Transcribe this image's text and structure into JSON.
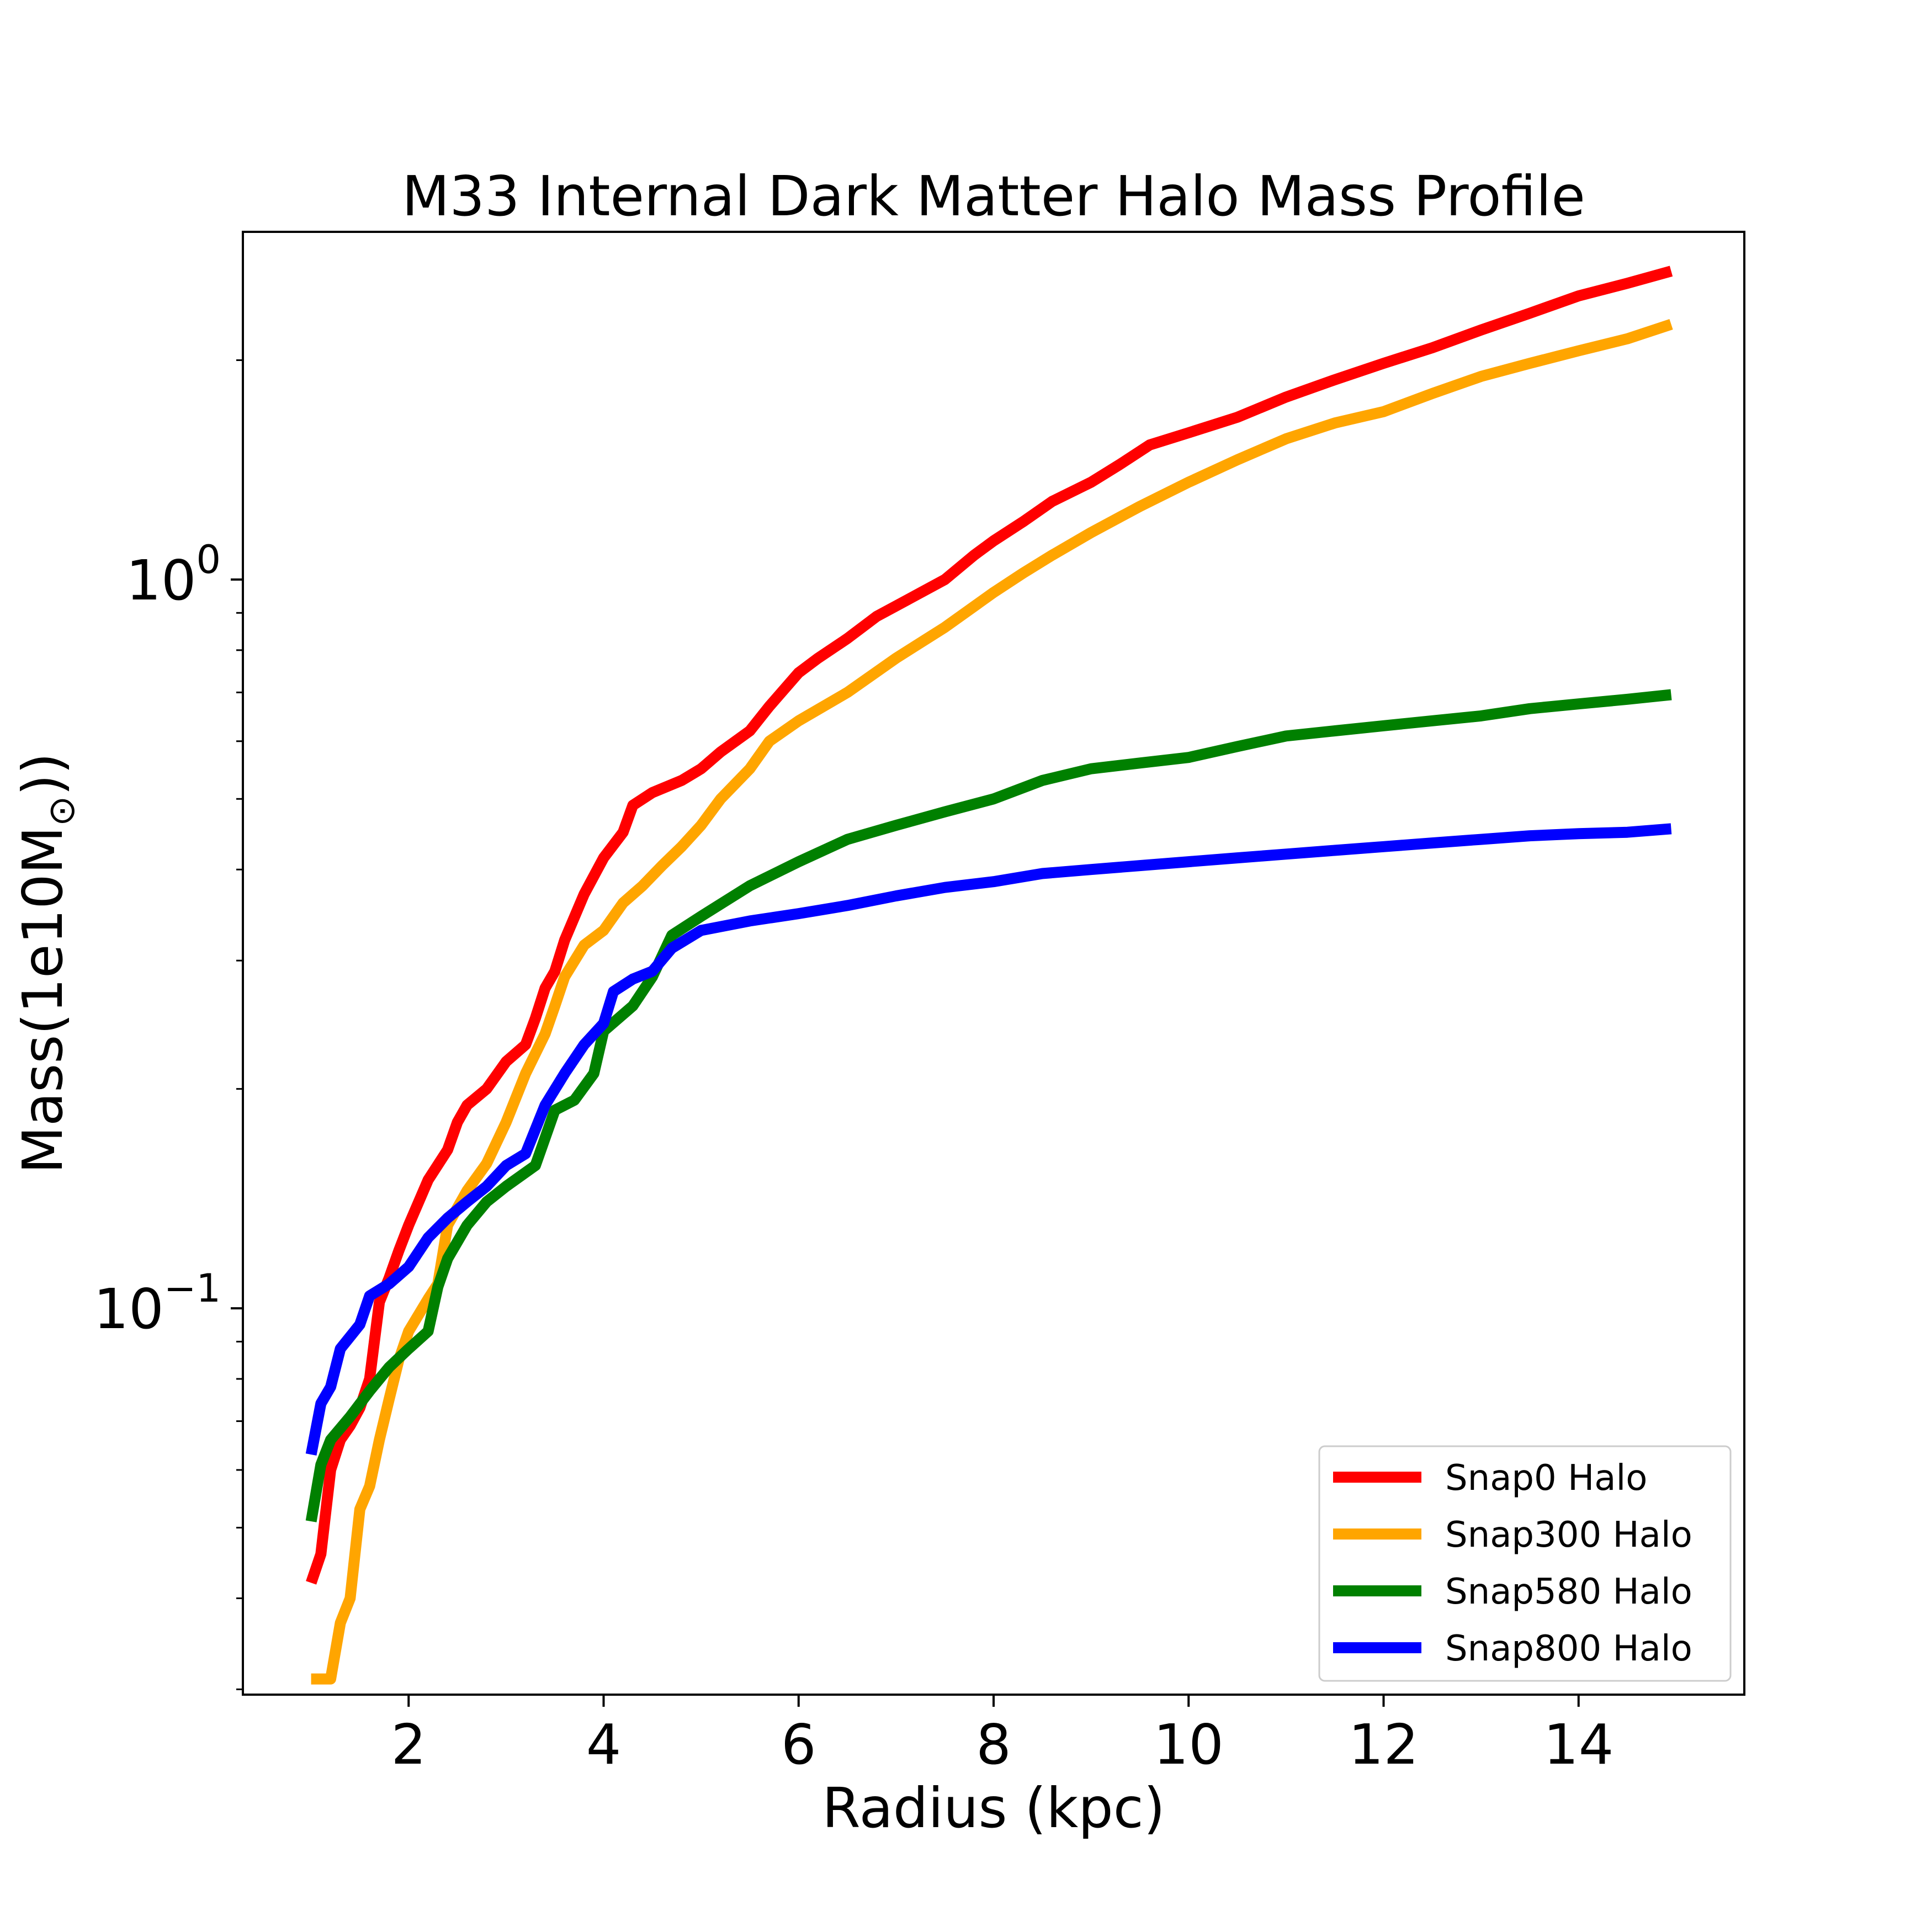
{
  "chart_data": {
    "type": "line",
    "title": "M33 Internal Dark Matter Halo Mass Profile",
    "xlabel": "Radius (kpc)",
    "ylabel_prefix": "Mass(1e10M",
    "ylabel_sub": "⊙",
    "ylabel_suffix": "))",
    "xlim": [
      0.3,
      15.7
    ],
    "ylim": [
      0.0295,
      3.0
    ],
    "yscale": "log",
    "grid": false,
    "legend_position": "lower-right",
    "x_ticks": [
      {
        "value": 2,
        "label": "2"
      },
      {
        "value": 4,
        "label": "4"
      },
      {
        "value": 6,
        "label": "6"
      },
      {
        "value": 8,
        "label": "8"
      },
      {
        "value": 10,
        "label": "10"
      },
      {
        "value": 12,
        "label": "12"
      },
      {
        "value": 14,
        "label": "14"
      }
    ],
    "y_major_ticks": [
      {
        "value": 0.1,
        "base": "10",
        "exp": "−1"
      },
      {
        "value": 1.0,
        "base": "10",
        "exp": "0"
      }
    ],
    "y_minor_ticks": [
      0.03,
      0.04,
      0.05,
      0.06,
      0.07,
      0.08,
      0.09,
      0.2,
      0.3,
      0.4,
      0.5,
      0.6,
      0.7,
      0.8,
      0.9,
      2.0
    ],
    "series": [
      {
        "name": "Snap0 Halo",
        "color": "#ff0000",
        "points": [
          [
            1.0,
            0.042
          ],
          [
            1.1,
            0.046
          ],
          [
            1.2,
            0.06
          ],
          [
            1.3,
            0.066
          ],
          [
            1.4,
            0.069
          ],
          [
            1.5,
            0.073
          ],
          [
            1.6,
            0.08
          ],
          [
            1.7,
            0.102
          ],
          [
            1.8,
            0.11
          ],
          [
            1.9,
            0.12
          ],
          [
            2.0,
            0.13
          ],
          [
            2.2,
            0.15
          ],
          [
            2.4,
            0.165
          ],
          [
            2.5,
            0.18
          ],
          [
            2.6,
            0.19
          ],
          [
            2.8,
            0.2
          ],
          [
            3.0,
            0.218
          ],
          [
            3.2,
            0.23
          ],
          [
            3.3,
            0.25
          ],
          [
            3.4,
            0.275
          ],
          [
            3.5,
            0.29
          ],
          [
            3.6,
            0.32
          ],
          [
            3.8,
            0.37
          ],
          [
            4.0,
            0.415
          ],
          [
            4.2,
            0.45
          ],
          [
            4.3,
            0.49
          ],
          [
            4.5,
            0.51
          ],
          [
            4.8,
            0.53
          ],
          [
            5.0,
            0.55
          ],
          [
            5.2,
            0.58
          ],
          [
            5.5,
            0.62
          ],
          [
            5.7,
            0.67
          ],
          [
            6.0,
            0.745
          ],
          [
            6.2,
            0.78
          ],
          [
            6.5,
            0.83
          ],
          [
            6.8,
            0.89
          ],
          [
            7.0,
            0.92
          ],
          [
            7.5,
            1.0
          ],
          [
            7.8,
            1.08
          ],
          [
            8.0,
            1.13
          ],
          [
            8.3,
            1.2
          ],
          [
            8.6,
            1.28
          ],
          [
            9.0,
            1.36
          ],
          [
            9.3,
            1.44
          ],
          [
            9.6,
            1.53
          ],
          [
            10.0,
            1.59
          ],
          [
            10.5,
            1.67
          ],
          [
            11.0,
            1.78
          ],
          [
            11.5,
            1.88
          ],
          [
            12.0,
            1.98
          ],
          [
            12.5,
            2.08
          ],
          [
            13.0,
            2.2
          ],
          [
            13.5,
            2.32
          ],
          [
            14.0,
            2.45
          ],
          [
            14.5,
            2.55
          ],
          [
            14.95,
            2.65
          ]
        ]
      },
      {
        "name": "Snap300 Halo",
        "color": "#ffa500",
        "points": [
          [
            1.0,
            0.031
          ],
          [
            1.2,
            0.031
          ],
          [
            1.3,
            0.037
          ],
          [
            1.4,
            0.04
          ],
          [
            1.5,
            0.053
          ],
          [
            1.6,
            0.057
          ],
          [
            1.7,
            0.066
          ],
          [
            1.8,
            0.075
          ],
          [
            1.9,
            0.085
          ],
          [
            2.0,
            0.093
          ],
          [
            2.2,
            0.103
          ],
          [
            2.3,
            0.108
          ],
          [
            2.4,
            0.13
          ],
          [
            2.6,
            0.145
          ],
          [
            2.8,
            0.158
          ],
          [
            3.0,
            0.18
          ],
          [
            3.2,
            0.21
          ],
          [
            3.4,
            0.238
          ],
          [
            3.5,
            0.26
          ],
          [
            3.6,
            0.285
          ],
          [
            3.8,
            0.315
          ],
          [
            4.0,
            0.33
          ],
          [
            4.2,
            0.36
          ],
          [
            4.4,
            0.38
          ],
          [
            4.6,
            0.405
          ],
          [
            4.8,
            0.43
          ],
          [
            5.0,
            0.46
          ],
          [
            5.2,
            0.5
          ],
          [
            5.5,
            0.55
          ],
          [
            5.7,
            0.6
          ],
          [
            6.0,
            0.64
          ],
          [
            6.5,
            0.7
          ],
          [
            7.0,
            0.78
          ],
          [
            7.5,
            0.86
          ],
          [
            8.0,
            0.96
          ],
          [
            8.3,
            1.02
          ],
          [
            8.6,
            1.08
          ],
          [
            9.0,
            1.16
          ],
          [
            9.5,
            1.26
          ],
          [
            10.0,
            1.36
          ],
          [
            10.5,
            1.46
          ],
          [
            11.0,
            1.56
          ],
          [
            11.5,
            1.64
          ],
          [
            12.0,
            1.7
          ],
          [
            12.5,
            1.8
          ],
          [
            13.0,
            1.9
          ],
          [
            13.5,
            1.98
          ],
          [
            14.0,
            2.06
          ],
          [
            14.5,
            2.14
          ],
          [
            14.95,
            2.24
          ]
        ]
      },
      {
        "name": "Snap580 Halo",
        "color": "#008000",
        "points": [
          [
            1.0,
            0.051
          ],
          [
            1.1,
            0.061
          ],
          [
            1.2,
            0.066
          ],
          [
            1.4,
            0.071
          ],
          [
            1.6,
            0.077
          ],
          [
            1.8,
            0.083
          ],
          [
            2.0,
            0.088
          ],
          [
            2.2,
            0.093
          ],
          [
            2.3,
            0.107
          ],
          [
            2.4,
            0.117
          ],
          [
            2.6,
            0.13
          ],
          [
            2.8,
            0.14
          ],
          [
            3.0,
            0.147
          ],
          [
            3.3,
            0.157
          ],
          [
            3.5,
            0.187
          ],
          [
            3.7,
            0.193
          ],
          [
            3.9,
            0.21
          ],
          [
            4.0,
            0.24
          ],
          [
            4.3,
            0.26
          ],
          [
            4.5,
            0.285
          ],
          [
            4.7,
            0.325
          ],
          [
            5.0,
            0.345
          ],
          [
            5.5,
            0.38
          ],
          [
            6.0,
            0.41
          ],
          [
            6.5,
            0.44
          ],
          [
            7.0,
            0.46
          ],
          [
            7.5,
            0.48
          ],
          [
            8.0,
            0.5
          ],
          [
            8.5,
            0.53
          ],
          [
            9.0,
            0.55
          ],
          [
            9.5,
            0.56
          ],
          [
            10.0,
            0.57
          ],
          [
            10.5,
            0.59
          ],
          [
            11.0,
            0.61
          ],
          [
            11.5,
            0.62
          ],
          [
            12.0,
            0.63
          ],
          [
            12.5,
            0.64
          ],
          [
            13.0,
            0.65
          ],
          [
            13.5,
            0.665
          ],
          [
            14.0,
            0.675
          ],
          [
            14.5,
            0.685
          ],
          [
            14.95,
            0.695
          ]
        ]
      },
      {
        "name": "Snap800 Halo",
        "color": "#0000ff",
        "points": [
          [
            1.0,
            0.063
          ],
          [
            1.1,
            0.074
          ],
          [
            1.2,
            0.078
          ],
          [
            1.3,
            0.088
          ],
          [
            1.5,
            0.095
          ],
          [
            1.6,
            0.104
          ],
          [
            1.8,
            0.108
          ],
          [
            2.0,
            0.114
          ],
          [
            2.2,
            0.125
          ],
          [
            2.4,
            0.133
          ],
          [
            2.6,
            0.14
          ],
          [
            2.8,
            0.147
          ],
          [
            3.0,
            0.157
          ],
          [
            3.2,
            0.163
          ],
          [
            3.4,
            0.19
          ],
          [
            3.6,
            0.21
          ],
          [
            3.8,
            0.23
          ],
          [
            4.0,
            0.246
          ],
          [
            4.1,
            0.272
          ],
          [
            4.3,
            0.283
          ],
          [
            4.5,
            0.29
          ],
          [
            4.7,
            0.312
          ],
          [
            5.0,
            0.33
          ],
          [
            5.5,
            0.34
          ],
          [
            6.0,
            0.348
          ],
          [
            6.5,
            0.357
          ],
          [
            7.0,
            0.368
          ],
          [
            7.5,
            0.378
          ],
          [
            8.0,
            0.385
          ],
          [
            8.5,
            0.395
          ],
          [
            9.0,
            0.4
          ],
          [
            9.5,
            0.405
          ],
          [
            10.0,
            0.41
          ],
          [
            10.5,
            0.415
          ],
          [
            11.0,
            0.42
          ],
          [
            11.5,
            0.425
          ],
          [
            12.0,
            0.43
          ],
          [
            12.5,
            0.435
          ],
          [
            13.0,
            0.44
          ],
          [
            13.5,
            0.445
          ],
          [
            14.0,
            0.448
          ],
          [
            14.5,
            0.45
          ],
          [
            14.95,
            0.455
          ]
        ]
      }
    ]
  }
}
